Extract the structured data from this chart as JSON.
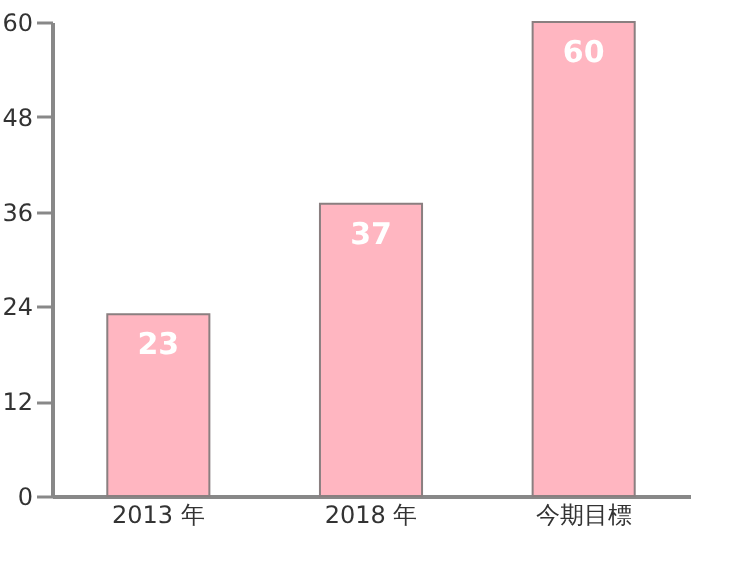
{
  "chart_data": {
    "type": "bar",
    "categories": [
      "2013 年",
      "2018 年",
      "今期目標"
    ],
    "values": [
      23,
      37,
      60
    ],
    "color": "#ffb6c1",
    "ylim": [
      0,
      60
    ],
    "yticks": [
      0,
      12,
      24,
      36,
      48,
      60
    ],
    "data_labels": true,
    "grid": false
  }
}
